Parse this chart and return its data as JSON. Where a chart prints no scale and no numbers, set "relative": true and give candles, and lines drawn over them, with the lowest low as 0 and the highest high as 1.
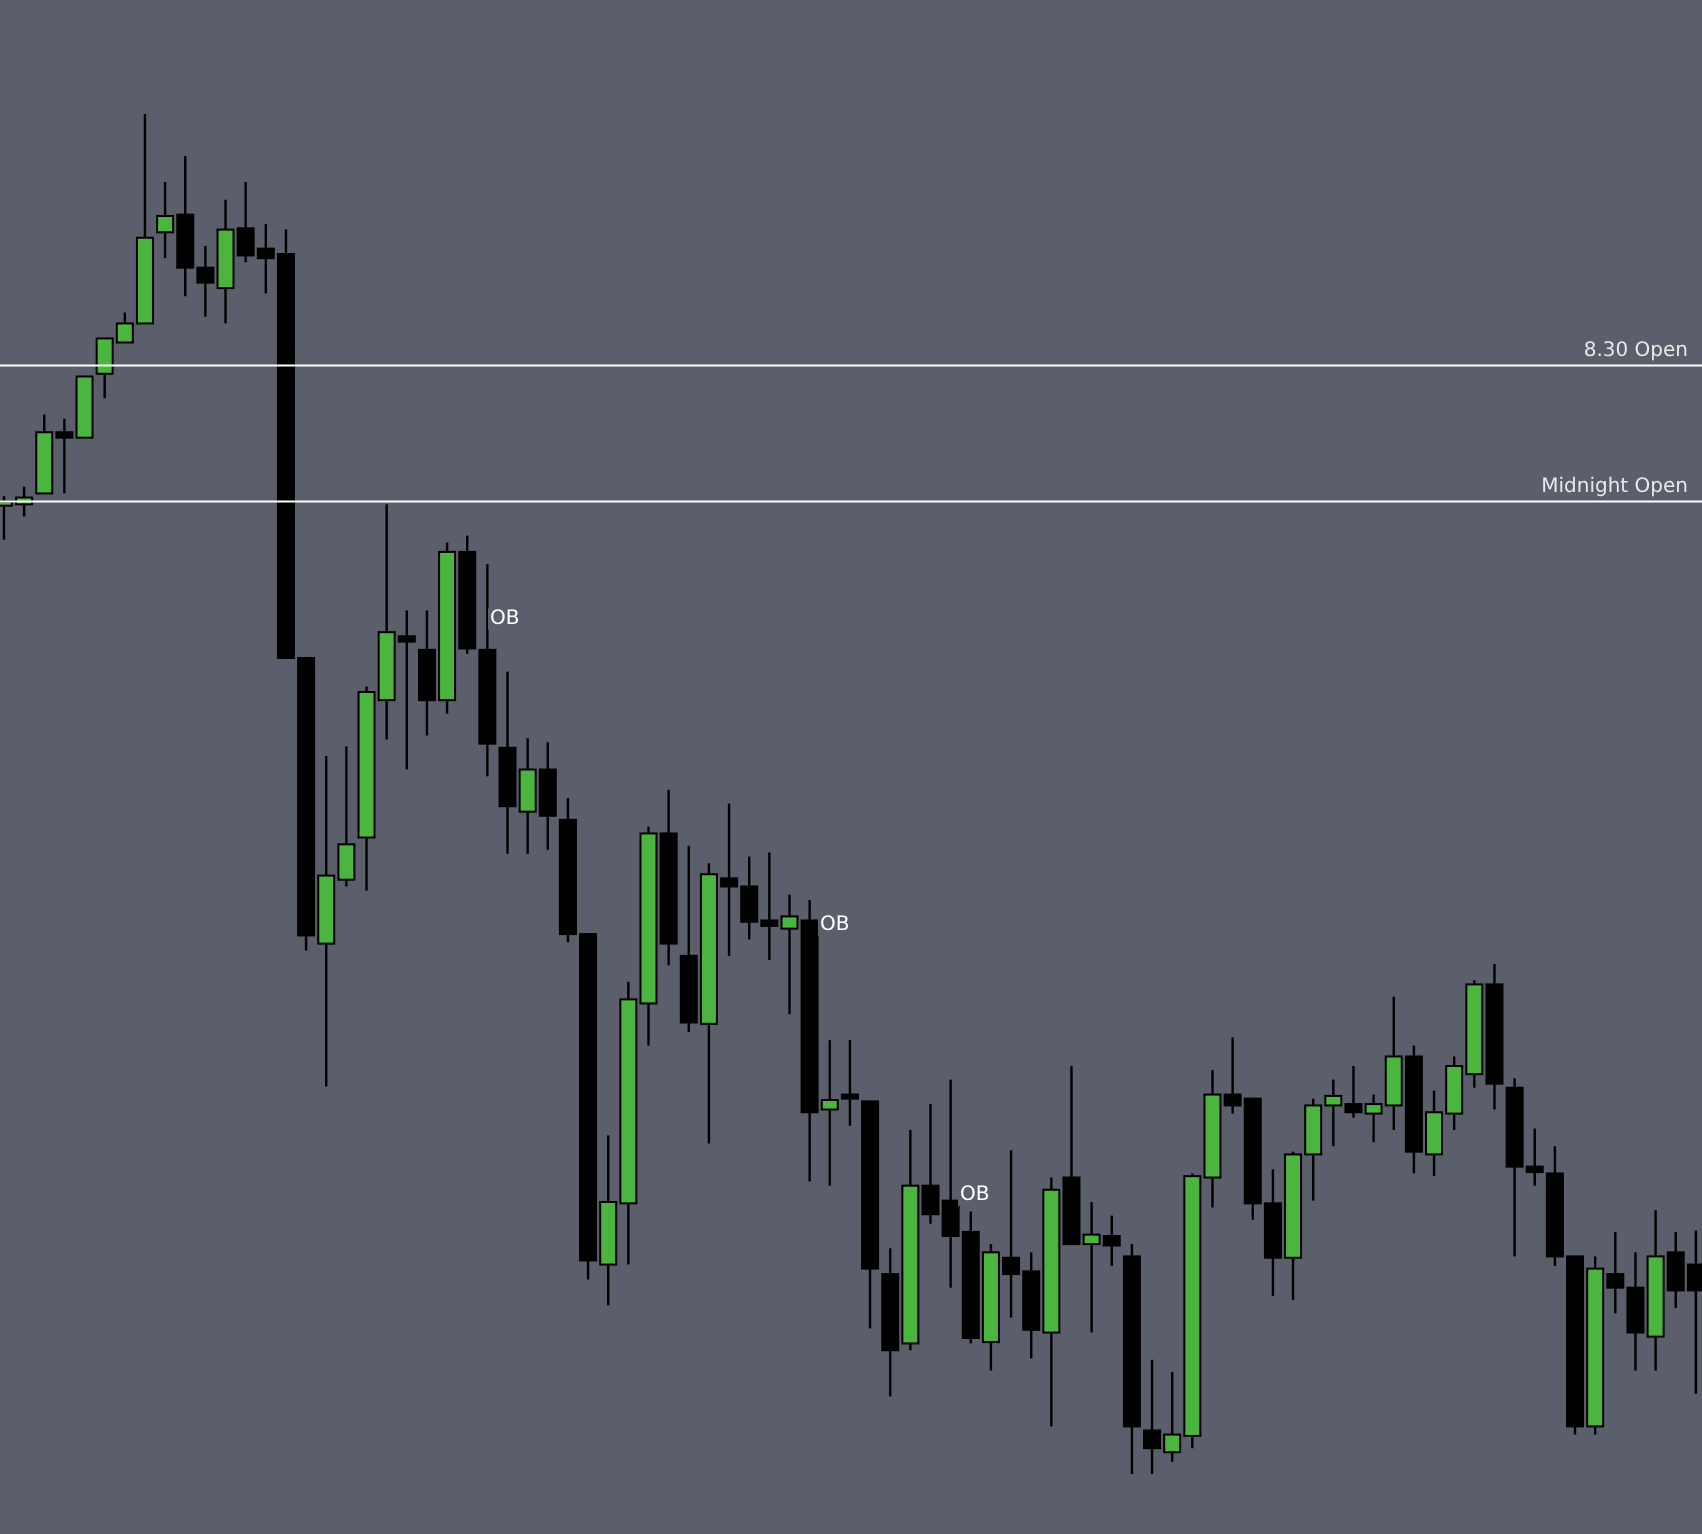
{
  "chart_data": {
    "type": "candlestick",
    "relative": true,
    "categories": [
      null,
      null,
      null,
      null,
      null,
      null,
      null,
      null,
      null,
      null,
      null,
      null,
      null,
      null,
      null,
      null,
      null,
      null,
      null,
      null,
      null,
      null,
      null,
      null,
      null,
      null,
      null,
      null,
      null,
      null,
      null,
      null,
      null,
      null,
      null,
      null,
      null,
      null,
      null,
      null,
      null,
      null,
      null,
      null,
      null,
      null,
      null,
      null,
      null,
      null,
      null,
      null,
      null,
      null,
      null,
      null,
      null,
      null,
      null,
      null,
      null,
      null,
      null,
      null,
      null,
      null,
      null,
      null,
      null,
      null,
      null,
      null,
      null,
      null,
      null,
      null,
      null,
      null,
      null,
      null,
      null,
      null,
      null,
      null,
      null
    ],
    "ohlc": [
      [
        0.712,
        0.719,
        0.687,
        0.715
      ],
      [
        0.713,
        0.726,
        0.704,
        0.718
      ],
      [
        0.721,
        0.779,
        0.721,
        0.766
      ],
      [
        0.766,
        0.776,
        0.721,
        0.762
      ],
      [
        0.762,
        0.807,
        0.762,
        0.807
      ],
      [
        0.809,
        0.835,
        0.791,
        0.835
      ],
      [
        0.832,
        0.854,
        0.832,
        0.846
      ],
      [
        0.846,
        1,
        0.846,
        0.909
      ],
      [
        0.913,
        0.95,
        0.894,
        0.925
      ],
      [
        0.926,
        0.969,
        0.866,
        0.887
      ],
      [
        0.887,
        0.903,
        0.851,
        0.876
      ],
      [
        0.872,
        0.937,
        0.846,
        0.915
      ],
      [
        0.916,
        0.95,
        0.891,
        0.896
      ],
      [
        0.901,
        0.919,
        0.868,
        0.894
      ],
      [
        0.897,
        0.915,
        0.6,
        0.6
      ],
      [
        0.6,
        0.6,
        0.385,
        0.396
      ],
      [
        0.39,
        0.528,
        0.285,
        0.44
      ],
      [
        0.437,
        0.535,
        0.432,
        0.463
      ],
      [
        0.468,
        0.579,
        0.429,
        0.575
      ],
      [
        0.569,
        0.713,
        0.54,
        0.619
      ],
      [
        0.616,
        0.635,
        0.518,
        0.612
      ],
      [
        0.606,
        0.635,
        0.543,
        0.569
      ],
      [
        0.569,
        0.685,
        0.559,
        0.678
      ],
      [
        0.678,
        0.69,
        0.603,
        0.607
      ],
      [
        0.606,
        0.669,
        0.513,
        0.537
      ],
      [
        0.534,
        0.59,
        0.456,
        0.491
      ],
      [
        0.487,
        0.541,
        0.456,
        0.518
      ],
      [
        0.518,
        0.538,
        0.459,
        0.484
      ],
      [
        0.481,
        0.497,
        0.391,
        0.397
      ],
      [
        0.397,
        0.397,
        0.143,
        0.157
      ],
      [
        0.154,
        0.249,
        0.124,
        0.2
      ],
      [
        0.199,
        0.362,
        0.154,
        0.349
      ],
      [
        0.346,
        0.476,
        0.315,
        0.471
      ],
      [
        0.471,
        0.503,
        0.374,
        0.39
      ],
      [
        0.381,
        0.462,
        0.325,
        0.332
      ],
      [
        0.331,
        0.449,
        0.243,
        0.441
      ],
      [
        0.438,
        0.493,
        0.381,
        0.432
      ],
      [
        0.432,
        0.454,
        0.393,
        0.406
      ],
      [
        0.407,
        0.457,
        0.378,
        0.403
      ],
      [
        0.401,
        0.426,
        0.338,
        0.41
      ],
      [
        0.407,
        0.422,
        0.215,
        0.266
      ],
      [
        0.268,
        0.319,
        0.212,
        0.275
      ],
      [
        0.279,
        0.319,
        0.256,
        0.276
      ],
      [
        0.274,
        0.274,
        0.107,
        0.151
      ],
      [
        0.147,
        0.166,
        0.057,
        0.091
      ],
      [
        0.096,
        0.253,
        0.091,
        0.212
      ],
      [
        0.212,
        0.272,
        0.184,
        0.191
      ],
      [
        0.201,
        0.29,
        0.137,
        0.175
      ],
      [
        0.178,
        0.193,
        0.096,
        0.1
      ],
      [
        0.097,
        0.169,
        0.076,
        0.163
      ],
      [
        0.159,
        0.238,
        0.115,
        0.147
      ],
      [
        0.149,
        0.163,
        0.085,
        0.106
      ],
      [
        0.104,
        0.218,
        0.035,
        0.209
      ],
      [
        0.218,
        0.3,
        0.169,
        0.169
      ],
      [
        0.169,
        0.2,
        0.104,
        0.176
      ],
      [
        0.175,
        0.19,
        0.153,
        0.168
      ],
      [
        0.16,
        0.169,
        0,
        0.035
      ],
      [
        0.032,
        0.084,
        0,
        0.019
      ],
      [
        0.016,
        0.075,
        0.009,
        0.029
      ],
      [
        0.028,
        0.221,
        0.019,
        0.219
      ],
      [
        0.218,
        0.297,
        0.196,
        0.279
      ],
      [
        0.279,
        0.321,
        0.265,
        0.271
      ],
      [
        0.276,
        0.276,
        0.187,
        0.199
      ],
      [
        0.199,
        0.224,
        0.131,
        0.159
      ],
      [
        0.159,
        0.237,
        0.128,
        0.235
      ],
      [
        0.235,
        0.276,
        0.201,
        0.271
      ],
      [
        0.271,
        0.29,
        0.241,
        0.278
      ],
      [
        0.272,
        0.3,
        0.262,
        0.266
      ],
      [
        0.265,
        0.279,
        0.244,
        0.272
      ],
      [
        0.271,
        0.351,
        0.253,
        0.307
      ],
      [
        0.307,
        0.315,
        0.221,
        0.237
      ],
      [
        0.235,
        0.282,
        0.219,
        0.266
      ],
      [
        0.265,
        0.307,
        0.253,
        0.3
      ],
      [
        0.294,
        0.363,
        0.284,
        0.36
      ],
      [
        0.36,
        0.375,
        0.268,
        0.287
      ],
      [
        0.284,
        0.291,
        0.16,
        0.226
      ],
      [
        0.226,
        0.254,
        0.212,
        0.222
      ],
      [
        0.221,
        0.241,
        0.153,
        0.16
      ],
      [
        0.16,
        0.16,
        0.029,
        0.035
      ],
      [
        0.035,
        0.16,
        0.029,
        0.151
      ],
      [
        0.147,
        0.178,
        0.118,
        0.137
      ],
      [
        0.137,
        0.163,
        0.076,
        0.104
      ],
      [
        0.101,
        0.194,
        0.076,
        0.16
      ],
      [
        0.163,
        0.178,
        0.122,
        0.135
      ],
      [
        0.154,
        0.179,
        0.059,
        0.135
      ]
    ],
    "colors": [
      "#4cb53f",
      "#4cb53f",
      "#4cb53f",
      "#000000",
      "#4cb53f",
      "#4cb53f",
      "#4cb53f",
      "#4cb53f",
      "#4cb53f",
      "#000000",
      "#000000",
      "#4cb53f",
      "#000000",
      "#000000",
      "#000000",
      "#000000",
      "#4cb53f",
      "#4cb53f",
      "#4cb53f",
      "#4cb53f",
      "#000000",
      "#000000",
      "#4cb53f",
      "#000000",
      "#000000",
      "#000000",
      "#4cb53f",
      "#000000",
      "#000000",
      "#000000",
      "#4cb53f",
      "#4cb53f",
      "#4cb53f",
      "#000000",
      "#000000",
      "#4cb53f",
      "#000000",
      "#000000",
      "#000000",
      "#4cb53f",
      "#000000",
      "#4cb53f",
      "#000000",
      "#000000",
      "#000000",
      "#4cb53f",
      "#000000",
      "#000000",
      "#000000",
      "#4cb53f",
      "#000000",
      "#000000",
      "#4cb53f",
      "#000000",
      "#4cb53f",
      "#000000",
      "#000000",
      "#000000",
      "#4cb53f",
      "#4cb53f",
      "#4cb53f",
      "#000000",
      "#000000",
      "#000000",
      "#4cb53f",
      "#4cb53f",
      "#4cb53f",
      "#000000",
      "#4cb53f",
      "#4cb53f",
      "#000000",
      "#4cb53f",
      "#4cb53f",
      "#4cb53f",
      "#000000",
      "#000000",
      "#000000",
      "#000000",
      "#000000",
      "#4cb53f",
      "#000000",
      "#000000",
      "#4cb53f",
      "#000000",
      "#000000"
    ],
    "ref_lines": [
      {
        "axis": "y",
        "value": 0.815,
        "label": "8.30 Open",
        "color": "#ffffff"
      },
      {
        "axis": "y",
        "value": 0.715,
        "label": "Midnight Open",
        "color": "#ffffff"
      }
    ],
    "annotations": [
      "OB",
      "OB",
      "OB"
    ]
  }
}
